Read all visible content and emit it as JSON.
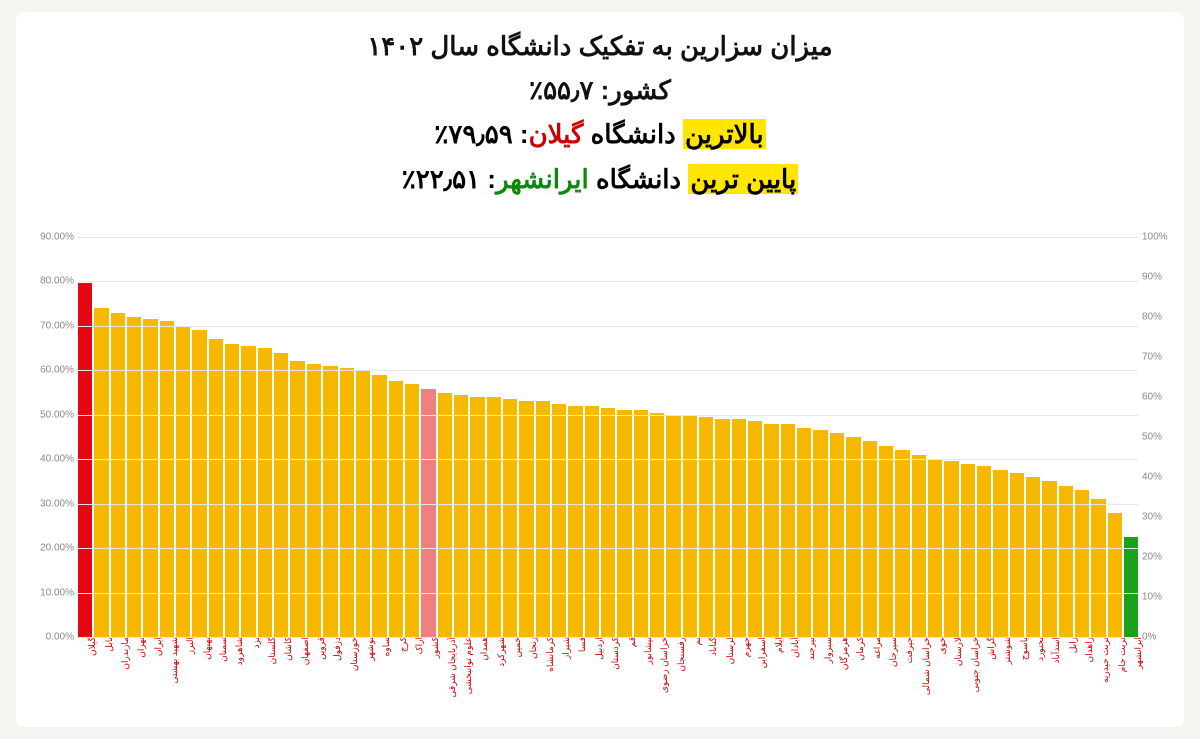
{
  "title": {
    "line1": "میزان سزارین به تفکیک دانشگاه سال ۱۴۰۲",
    "line2": "کشور: ۵۵٫۷٪",
    "line3_hl": "بالاترین",
    "line3_mid": " دانشگاه ",
    "line3_name": "گیلان",
    "line3_val": ": ۷۹٫۵۹٪",
    "line4_hl": "پایین ترین",
    "line4_mid": " دانشگاه ",
    "line4_name": "ایرانشهر",
    "line4_val": ": ۲۲٫۵۱٪"
  },
  "chart": {
    "type": "bar",
    "background_color": "#ffffff",
    "grid_color": "#e5e5e5",
    "default_bar_color": "#f6b900",
    "highlight_high_color": "#e30613",
    "mid_highlight_color": "#f08080",
    "highlight_low_color": "#1aa31a",
    "xlabel_color": "#cc0000",
    "y_left": {
      "min": 0,
      "max": 90,
      "step": 10,
      "fmt_suffix": ".00%"
    },
    "y_right": {
      "min": 0,
      "max": 100,
      "step": 10,
      "fmt_suffix": "%"
    },
    "title_fontsize": 26,
    "axis_fontsize": 10,
    "xlabel_fontsize": 9,
    "bars": [
      {
        "label": "گیلان",
        "value": 79.59,
        "color": "#e30613"
      },
      {
        "label": "بابل",
        "value": 74.0
      },
      {
        "label": "مازندران",
        "value": 73.0
      },
      {
        "label": "تهران",
        "value": 72.0
      },
      {
        "label": "ایران",
        "value": 71.5
      },
      {
        "label": "شهید بهشتی",
        "value": 71.0
      },
      {
        "label": "البرز",
        "value": 70.0
      },
      {
        "label": "بهبهان",
        "value": 69.0
      },
      {
        "label": "سمنان",
        "value": 67.0
      },
      {
        "label": "شاهرود",
        "value": 66.0
      },
      {
        "label": "یزد",
        "value": 65.5
      },
      {
        "label": "گلستان",
        "value": 65.0
      },
      {
        "label": "کاشان",
        "value": 64.0
      },
      {
        "label": "اصفهان",
        "value": 62.0
      },
      {
        "label": "قزوین",
        "value": 61.5
      },
      {
        "label": "دزفول",
        "value": 61.0
      },
      {
        "label": "خوزستان",
        "value": 60.5
      },
      {
        "label": "بوشهر",
        "value": 60.0
      },
      {
        "label": "ساوه",
        "value": 59.0
      },
      {
        "label": "کرج",
        "value": 57.5
      },
      {
        "label": "اراک",
        "value": 57.0
      },
      {
        "label": "کشور",
        "value": 55.7,
        "color": "#f08080"
      },
      {
        "label": "آذربایجان شرقی",
        "value": 55.0
      },
      {
        "label": "علوم توانبخشی",
        "value": 54.5
      },
      {
        "label": "همدان",
        "value": 54.0
      },
      {
        "label": "شهرکرد",
        "value": 54.0
      },
      {
        "label": "خمین",
        "value": 53.5
      },
      {
        "label": "زنجان",
        "value": 53.0
      },
      {
        "label": "کرمانشاه",
        "value": 53.0
      },
      {
        "label": "شیراز",
        "value": 52.5
      },
      {
        "label": "فسا",
        "value": 52.0
      },
      {
        "label": "اردبیل",
        "value": 52.0
      },
      {
        "label": "کردستان",
        "value": 51.5
      },
      {
        "label": "قم",
        "value": 51.0
      },
      {
        "label": "نیشابور",
        "value": 51.0
      },
      {
        "label": "خراسان رضوی",
        "value": 50.5
      },
      {
        "label": "رفسنجان",
        "value": 50.0
      },
      {
        "label": "بم",
        "value": 50.0
      },
      {
        "label": "گناباد",
        "value": 49.5
      },
      {
        "label": "لرستان",
        "value": 49.0
      },
      {
        "label": "جهرم",
        "value": 49.0
      },
      {
        "label": "اسفراین",
        "value": 48.5
      },
      {
        "label": "ایلام",
        "value": 48.0
      },
      {
        "label": "آبادان",
        "value": 48.0
      },
      {
        "label": "بیرجند",
        "value": 47.0
      },
      {
        "label": "سبزوار",
        "value": 46.5
      },
      {
        "label": "هرمزگان",
        "value": 46.0
      },
      {
        "label": "کرمان",
        "value": 45.0
      },
      {
        "label": "مراغه",
        "value": 44.0
      },
      {
        "label": "سیرجان",
        "value": 43.0
      },
      {
        "label": "جیرفت",
        "value": 42.0
      },
      {
        "label": "خراسان شمالی",
        "value": 41.0
      },
      {
        "label": "خوی",
        "value": 40.0
      },
      {
        "label": "لارستان",
        "value": 39.5
      },
      {
        "label": "خراسان جنوبی",
        "value": 39.0
      },
      {
        "label": "گراش",
        "value": 38.5
      },
      {
        "label": "شوشتر",
        "value": 37.5
      },
      {
        "label": "یاسوج",
        "value": 37.0
      },
      {
        "label": "بجنورد",
        "value": 36.0
      },
      {
        "label": "اسدآباد",
        "value": 35.0
      },
      {
        "label": "زابل",
        "value": 34.0
      },
      {
        "label": "زاهدان",
        "value": 33.0
      },
      {
        "label": "تربت حیدریه",
        "value": 31.0
      },
      {
        "label": "تربت جام",
        "value": 28.0
      },
      {
        "label": "ایرانشهر",
        "value": 22.51,
        "color": "#1aa31a"
      }
    ]
  }
}
